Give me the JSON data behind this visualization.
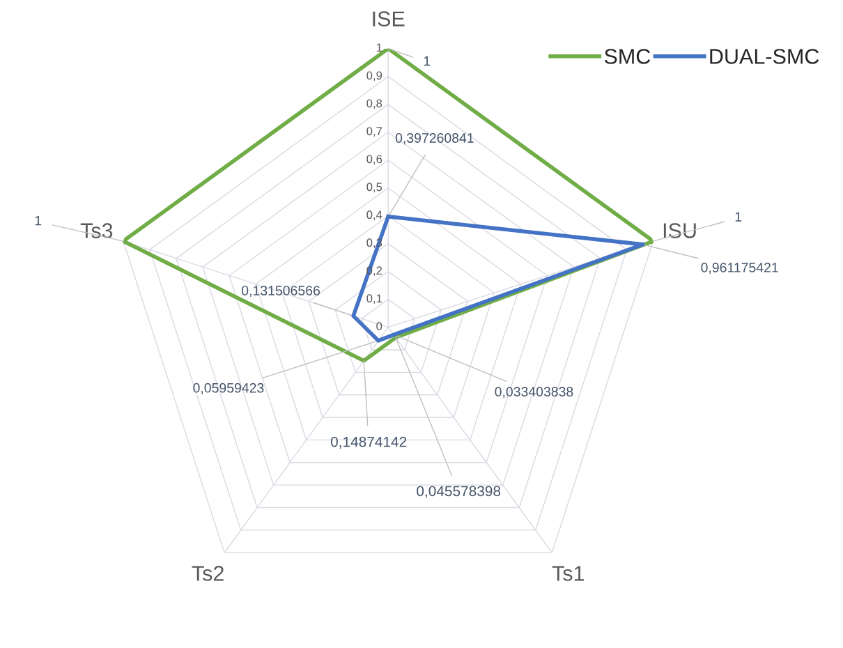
{
  "chart_data": {
    "type": "radar",
    "categories": [
      "ISE",
      "ISU",
      "Ts1",
      "Ts2",
      "Ts3"
    ],
    "series": [
      {
        "name": "SMC",
        "color": "#70ad47",
        "values": [
          1,
          1,
          0.045578398,
          0.14874142,
          1
        ],
        "value_labels": [
          "1",
          "1",
          "0,045578398",
          "0,14874142",
          "1"
        ]
      },
      {
        "name": "DUAL-SMC",
        "color": "#4472c4",
        "values": [
          0.397260841,
          0.961175421,
          0.033403838,
          0.05959423,
          0.131506566
        ],
        "value_labels": [
          "0,397260841",
          "0,961175421",
          "0,033403838",
          "0,05959423",
          "0,131506566"
        ]
      }
    ],
    "ylim": [
      0,
      1
    ],
    "yticks": [
      0,
      {
        "value": 0.1,
        "label": "0,1"
      },
      {
        "value": 0.2,
        "label": "0,2"
      },
      {
        "value": 0.3,
        "label": "0,3"
      },
      {
        "value": 0.4,
        "label": "0,4"
      },
      {
        "value": 0.5,
        "label": "0,5"
      },
      {
        "value": 0.6,
        "label": "0,6"
      },
      {
        "value": 0.7,
        "label": "0,7"
      },
      {
        "value": 0.8,
        "label": "0,8"
      },
      {
        "value": 0.9,
        "label": "0,9"
      },
      1
    ],
    "grid": true,
    "legend": "top right"
  }
}
